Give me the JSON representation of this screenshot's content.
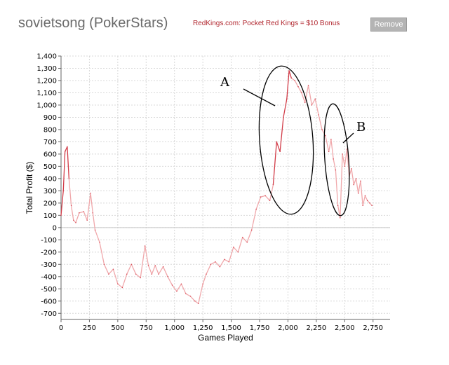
{
  "header": {
    "player": "sovietsong (PokerStars)",
    "promo": "RedKings.com: Pocket Red Kings = $10 Bonus",
    "remove_label": "Remove"
  },
  "colors": {
    "series": "#d23c48",
    "series_faded": "#f0a8ab",
    "grid": "#d8d8d8"
  },
  "chart_data": {
    "type": "line",
    "xlabel": "Games Played",
    "ylabel": "Total Profit ($)",
    "xlim": [
      0,
      2900
    ],
    "ylim": [
      -750,
      1400
    ],
    "x_ticks": [
      0,
      250,
      500,
      750,
      1000,
      1250,
      1500,
      1750,
      2000,
      2250,
      2500,
      2750
    ],
    "y_ticks": [
      -700,
      -600,
      -500,
      -400,
      -300,
      -200,
      -100,
      0,
      100,
      200,
      300,
      400,
      500,
      600,
      700,
      800,
      900,
      1000,
      1100,
      1200,
      1300,
      1400
    ],
    "grid": true,
    "note": "color fades lighter when the series is below its running peak",
    "series": [
      {
        "x": [
          0,
          20,
          35,
          55,
          70,
          90,
          110,
          130,
          160,
          200,
          230,
          260,
          280,
          300,
          340,
          380,
          420,
          460,
          500,
          540,
          580,
          620,
          660,
          700,
          740,
          770,
          800,
          830,
          860,
          900,
          940,
          980,
          1020,
          1060,
          1100,
          1140,
          1180,
          1210,
          1250,
          1280,
          1320,
          1360,
          1400,
          1440,
          1480,
          1520,
          1560,
          1600,
          1640,
          1680,
          1720,
          1760,
          1800,
          1840,
          1870,
          1900,
          1930,
          1960,
          1990,
          2010,
          2030,
          2060,
          2090,
          2120,
          2150,
          2180,
          2210,
          2240,
          2270,
          2300,
          2330,
          2360,
          2380,
          2400,
          2420,
          2440,
          2460,
          2480,
          2500,
          2520,
          2540,
          2560,
          2580,
          2600,
          2620,
          2640,
          2660,
          2680,
          2700,
          2720,
          2740
        ],
        "values": [
          100,
          300,
          620,
          660,
          400,
          180,
          60,
          40,
          120,
          130,
          60,
          280,
          120,
          -20,
          -120,
          -300,
          -380,
          -340,
          -460,
          -490,
          -380,
          -300,
          -380,
          -410,
          -150,
          -310,
          -380,
          -310,
          -380,
          -320,
          -400,
          -470,
          -520,
          -460,
          -540,
          -560,
          -600,
          -620,
          -460,
          -380,
          -300,
          -280,
          -320,
          -260,
          -280,
          -160,
          -200,
          -80,
          -120,
          -20,
          150,
          250,
          260,
          220,
          350,
          700,
          620,
          900,
          1050,
          1280,
          1220,
          1200,
          1150,
          1100,
          1020,
          1160,
          1000,
          1050,
          920,
          800,
          750,
          620,
          720,
          560,
          470,
          180,
          80,
          600,
          500,
          640,
          420,
          480,
          350,
          400,
          280,
          380,
          180,
          260,
          220,
          200,
          180
        ]
      }
    ]
  },
  "annotations": {
    "label_a": "A",
    "label_b": "B"
  }
}
